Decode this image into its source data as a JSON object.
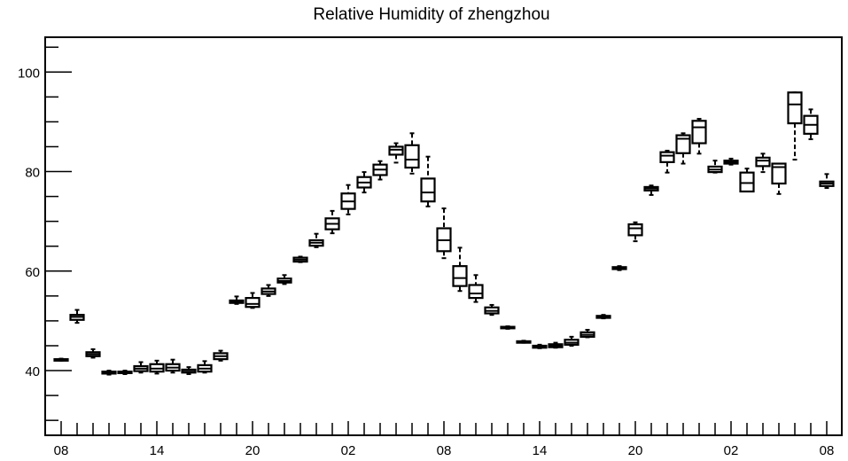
{
  "chart_data": {
    "type": "box",
    "title": "Relative Humidity of zhengzhou",
    "xlabel": "",
    "ylabel": "",
    "ylim": [
      27,
      107
    ],
    "y_major_ticks": [
      40,
      60,
      80,
      100
    ],
    "y_minor_step": 5,
    "x_tick_labels": [
      "08",
      "14",
      "20",
      "02",
      "08",
      "14",
      "20",
      "02",
      "08"
    ],
    "x_label_every_hours": 6,
    "x_minor_step_hours": 1,
    "grid": false,
    "box_color": "#000000",
    "boxes": [
      {
        "hour": 0,
        "min": 42.0,
        "q1": 42.0,
        "median": 42.2,
        "q3": 42.3,
        "max": 42.4
      },
      {
        "hour": 1,
        "min": 49.6,
        "q1": 50.2,
        "median": 50.8,
        "q3": 51.2,
        "max": 52.2
      },
      {
        "hour": 2,
        "min": 42.6,
        "q1": 42.9,
        "median": 43.3,
        "q3": 43.7,
        "max": 44.3
      },
      {
        "hour": 3,
        "min": 39.2,
        "q1": 39.4,
        "median": 39.6,
        "q3": 39.8,
        "max": 40.0
      },
      {
        "hour": 4,
        "min": 39.3,
        "q1": 39.5,
        "median": 39.7,
        "q3": 39.8,
        "max": 40.0
      },
      {
        "hour": 5,
        "min": 39.6,
        "q1": 39.9,
        "median": 40.4,
        "q3": 40.9,
        "max": 41.7
      },
      {
        "hour": 6,
        "min": 39.4,
        "q1": 39.8,
        "median": 40.4,
        "q3": 41.3,
        "max": 42.0
      },
      {
        "hour": 7,
        "min": 39.6,
        "q1": 40.0,
        "median": 40.6,
        "q3": 41.3,
        "max": 42.2
      },
      {
        "hour": 8,
        "min": 39.3,
        "q1": 39.6,
        "median": 39.8,
        "q3": 40.2,
        "max": 40.7
      },
      {
        "hour": 9,
        "min": 39.6,
        "q1": 39.8,
        "median": 40.4,
        "q3": 41.1,
        "max": 41.9
      },
      {
        "hour": 10,
        "min": 42.0,
        "q1": 42.3,
        "median": 42.9,
        "q3": 43.5,
        "max": 44.0
      },
      {
        "hour": 11,
        "min": 53.4,
        "q1": 53.6,
        "median": 53.8,
        "q3": 54.1,
        "max": 54.9
      },
      {
        "hour": 12,
        "min": 52.6,
        "q1": 52.8,
        "median": 53.4,
        "q3": 54.6,
        "max": 55.6
      },
      {
        "hour": 13,
        "min": 55.0,
        "q1": 55.4,
        "median": 55.9,
        "q3": 56.5,
        "max": 57.2
      },
      {
        "hour": 14,
        "min": 57.4,
        "q1": 57.7,
        "median": 58.0,
        "q3": 58.5,
        "max": 59.2
      },
      {
        "hour": 15,
        "min": 61.8,
        "q1": 61.9,
        "median": 62.3,
        "q3": 62.7,
        "max": 62.9
      },
      {
        "hour": 16,
        "min": 64.8,
        "q1": 65.1,
        "median": 65.7,
        "q3": 66.2,
        "max": 67.5
      },
      {
        "hour": 17,
        "min": 67.6,
        "q1": 68.4,
        "median": 69.5,
        "q3": 70.6,
        "max": 72.1
      },
      {
        "hour": 18,
        "min": 71.4,
        "q1": 72.5,
        "median": 74.0,
        "q3": 75.6,
        "max": 77.3
      },
      {
        "hour": 19,
        "min": 75.8,
        "q1": 76.8,
        "median": 77.8,
        "q3": 78.9,
        "max": 79.9
      },
      {
        "hour": 20,
        "min": 78.4,
        "q1": 79.3,
        "median": 80.4,
        "q3": 81.4,
        "max": 82.1
      },
      {
        "hour": 21,
        "min": 81.8,
        "q1": 83.4,
        "median": 84.4,
        "q3": 85.0,
        "max": 85.7
      },
      {
        "hour": 22,
        "min": 79.6,
        "q1": 80.8,
        "median": 82.4,
        "q3": 85.3,
        "max": 87.7
      },
      {
        "hour": 23,
        "min": 73.0,
        "q1": 74.0,
        "median": 75.8,
        "q3": 78.6,
        "max": 83.0
      },
      {
        "hour": 24,
        "min": 62.6,
        "q1": 64.0,
        "median": 66.2,
        "q3": 68.6,
        "max": 72.6
      },
      {
        "hour": 25,
        "min": 56.0,
        "q1": 57.0,
        "median": 58.6,
        "q3": 61.0,
        "max": 64.7
      },
      {
        "hour": 26,
        "min": 53.8,
        "q1": 54.6,
        "median": 55.5,
        "q3": 57.2,
        "max": 59.2
      },
      {
        "hour": 27,
        "min": 51.2,
        "q1": 51.5,
        "median": 52.0,
        "q3": 52.7,
        "max": 53.2
      },
      {
        "hour": 28,
        "min": 48.4,
        "q1": 48.5,
        "median": 48.7,
        "q3": 48.8,
        "max": 48.9
      },
      {
        "hour": 29,
        "min": 45.6,
        "q1": 45.6,
        "median": 45.8,
        "q3": 45.9,
        "max": 46.0
      },
      {
        "hour": 30,
        "min": 44.5,
        "q1": 44.6,
        "median": 44.8,
        "q3": 45.0,
        "max": 45.2
      },
      {
        "hour": 31,
        "min": 44.6,
        "q1": 44.7,
        "median": 45.0,
        "q3": 45.3,
        "max": 45.6
      },
      {
        "hour": 32,
        "min": 45.0,
        "q1": 45.2,
        "median": 45.6,
        "q3": 46.2,
        "max": 46.8
      },
      {
        "hour": 33,
        "min": 46.7,
        "q1": 46.8,
        "median": 47.2,
        "q3": 47.7,
        "max": 48.2
      },
      {
        "hour": 34,
        "min": 50.5,
        "q1": 50.6,
        "median": 50.8,
        "q3": 51.0,
        "max": 51.2
      },
      {
        "hour": 35,
        "min": 60.2,
        "q1": 60.4,
        "median": 60.7,
        "q3": 60.8,
        "max": 61.0
      },
      {
        "hour": 36,
        "min": 66.0,
        "q1": 67.2,
        "median": 68.6,
        "q3": 69.4,
        "max": 69.8
      },
      {
        "hour": 37,
        "min": 75.3,
        "q1": 76.2,
        "median": 76.6,
        "q3": 76.9,
        "max": 77.2
      },
      {
        "hour": 38,
        "min": 79.8,
        "q1": 81.9,
        "median": 83.2,
        "q3": 83.9,
        "max": 84.2
      },
      {
        "hour": 39,
        "min": 81.6,
        "q1": 83.7,
        "median": 86.6,
        "q3": 87.3,
        "max": 87.7
      },
      {
        "hour": 40,
        "min": 83.6,
        "q1": 85.7,
        "median": 88.9,
        "q3": 90.2,
        "max": 90.6
      },
      {
        "hour": 41,
        "min": 79.8,
        "q1": 79.9,
        "median": 80.4,
        "q3": 81.0,
        "max": 82.2
      },
      {
        "hour": 42,
        "min": 81.4,
        "q1": 81.6,
        "median": 81.9,
        "q3": 82.2,
        "max": 82.6
      },
      {
        "hour": 43,
        "min": 76.0,
        "q1": 76.0,
        "median": 77.7,
        "q3": 79.8,
        "max": 80.6
      },
      {
        "hour": 44,
        "min": 79.9,
        "q1": 81.1,
        "median": 82.2,
        "q3": 82.8,
        "max": 83.6
      },
      {
        "hour": 45,
        "min": 75.5,
        "q1": 77.6,
        "median": 80.9,
        "q3": 81.6,
        "max": 81.6
      },
      {
        "hour": 46,
        "min": 82.4,
        "q1": 89.7,
        "median": 93.5,
        "q3": 95.9,
        "max": 95.9
      },
      {
        "hour": 47,
        "min": 86.5,
        "q1": 87.6,
        "median": 89.4,
        "q3": 91.2,
        "max": 92.5
      },
      {
        "hour": 48,
        "min": 76.7,
        "q1": 77.1,
        "median": 77.6,
        "q3": 78.0,
        "max": 79.5
      }
    ]
  }
}
